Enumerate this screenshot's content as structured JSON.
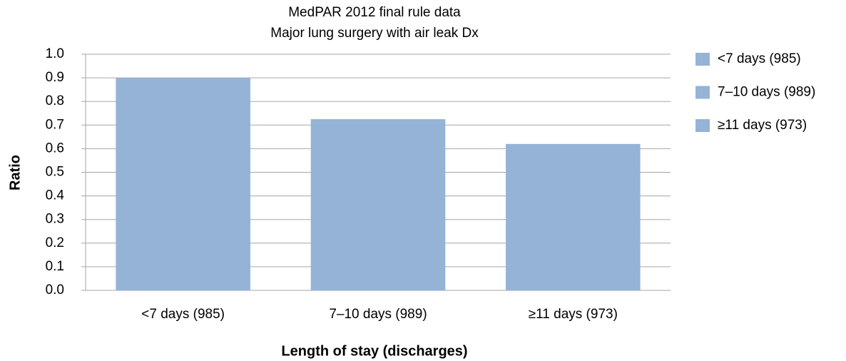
{
  "chart_data": {
    "type": "bar",
    "title": "MedPAR 2012 final rule data",
    "subtitle": "Major lung surgery with air leak Dx",
    "x_label": "Length of stay (discharges)",
    "y_label": "Ratio",
    "categories": [
      "<7 days (985)",
      "7–10 days (989)",
      "≥11 days (973)"
    ],
    "values": [
      0.9,
      0.725,
      0.62
    ],
    "color": "#95b3d7",
    "ylim": [
      0,
      1
    ],
    "yticks": [
      {
        "value": 0,
        "label": "0.0"
      },
      0.1,
      0.2,
      0.3,
      0.4,
      0.5,
      0.6,
      0.7,
      0.8,
      0.9,
      {
        "value": 1,
        "label": "1.0"
      }
    ],
    "grid": true,
    "legend": "right"
  }
}
